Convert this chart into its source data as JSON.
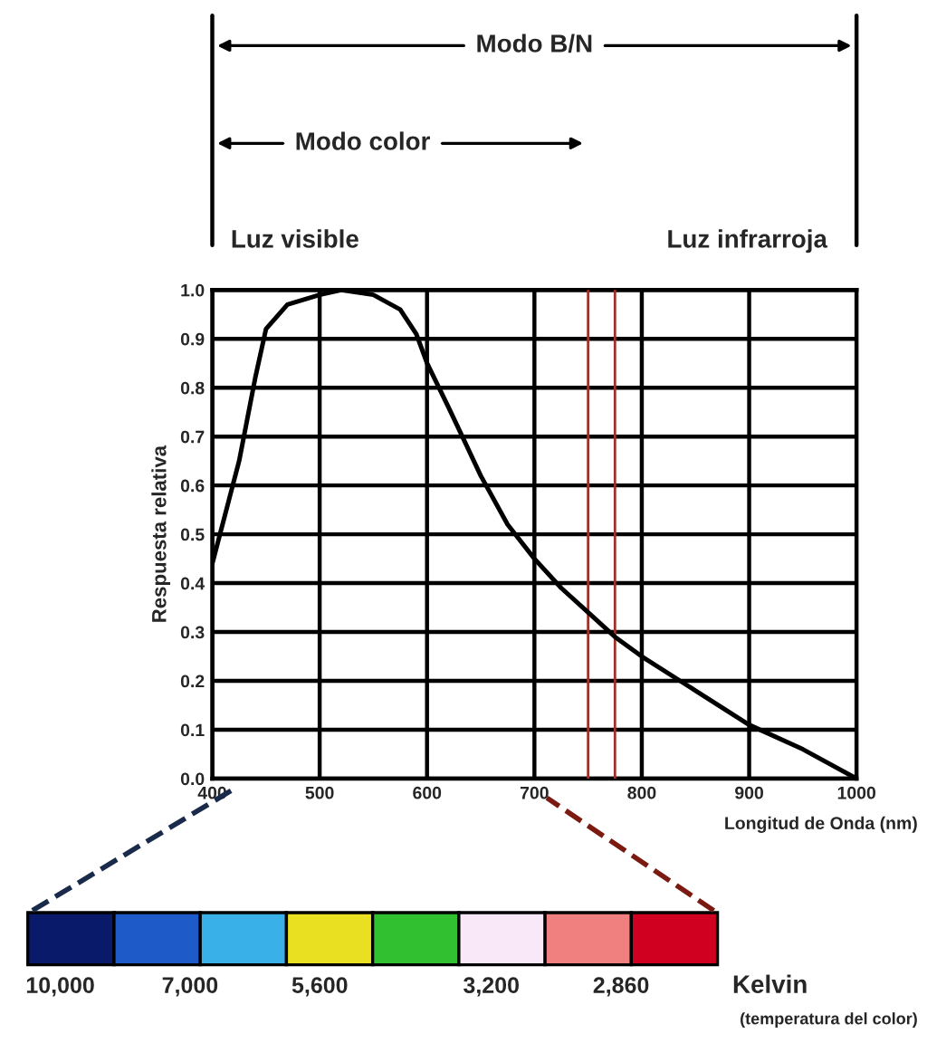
{
  "chart_data": {
    "type": "line",
    "xlabel": "Longitud de Onda (nm)",
    "ylabel": "Respuesta relativa",
    "x": [
      400,
      425,
      440,
      450,
      470,
      500,
      520,
      550,
      575,
      590,
      600,
      620,
      650,
      675,
      700,
      725,
      750,
      775,
      800,
      850,
      900,
      950,
      1000
    ],
    "series": [
      {
        "color": "#000000",
        "values": [
          0.44,
          0.65,
          0.82,
          0.92,
          0.97,
          0.99,
          1.0,
          0.99,
          0.96,
          0.91,
          0.85,
          0.76,
          0.62,
          0.52,
          0.45,
          0.39,
          0.34,
          0.29,
          0.25,
          0.18,
          0.11,
          0.06,
          0.0
        ]
      }
    ],
    "xlim": [
      400,
      1000
    ],
    "xticks": [
      400,
      500,
      600,
      700,
      800,
      900,
      1000
    ],
    "ylim": [
      0.0,
      1.0
    ],
    "yticks": [
      {
        "value": 0,
        "label": "0.0"
      },
      0.1,
      0.2,
      0.3,
      0.4,
      0.5,
      0.6,
      0.7,
      0.8,
      0.9,
      {
        "value": 1,
        "label": "1.0"
      }
    ],
    "grid": true,
    "marker": "none",
    "line_style": "solid",
    "ref_lines": [
      {
        "axis": "x",
        "value": 750,
        "color": "#a0302a"
      },
      {
        "axis": "x",
        "value": 775,
        "color": "#a0302a"
      }
    ],
    "annotations": [
      "Modo B/N",
      "Modo color",
      "Luz visible",
      "Luz infrarroja",
      "10,000",
      "7,000",
      "5,600",
      "3,200",
      "2,860",
      "Kelvin",
      "(temperatura del color)"
    ]
  }
}
